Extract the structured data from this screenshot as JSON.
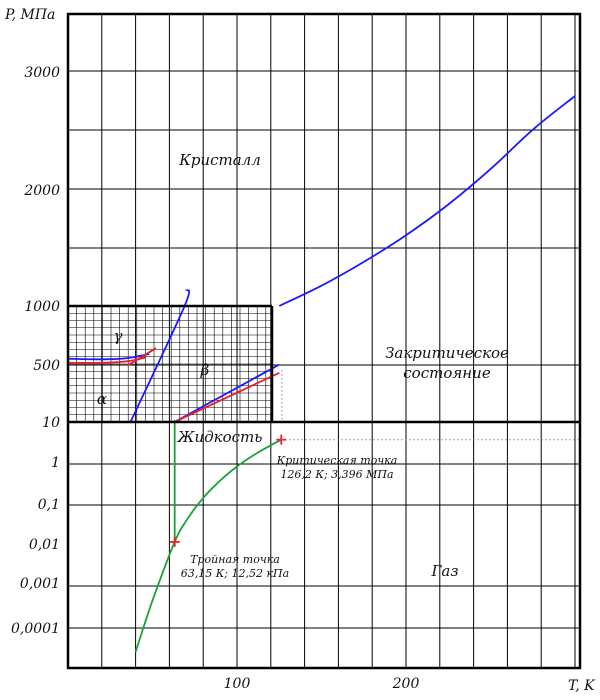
{
  "chart_data": {
    "type": "line",
    "title": "",
    "xlabel": "T, K",
    "ylabel": "P, МПа",
    "x_ticks": [
      "100",
      "200"
    ],
    "y_ticks_lower": [
      "0,0001",
      "0,001",
      "0,01",
      "0,1",
      "1",
      "10"
    ],
    "y_ticks_middle": [
      "10",
      "500",
      "1000"
    ],
    "y_ticks_upper": [
      "1000",
      "2000",
      "3000"
    ],
    "grid": true,
    "colors": {
      "melting": "#1a1aff",
      "boundary": "#e8202a",
      "vapor": "#1aa336",
      "marker": "#e8202a",
      "axes": "#000000"
    },
    "region_labels": {
      "crystal": "Кристалл",
      "supercritical_line1": "Закритическое",
      "supercritical_line2": "состояние",
      "liquid": "Жидкость",
      "gas": "Газ",
      "alpha": "α",
      "beta": "β",
      "gamma": "γ"
    },
    "critical_point": {
      "label_line1": "Критическая точка",
      "label_line2": "126,2 К; 3,396 МПа",
      "T": 126.2,
      "P": 3.396
    },
    "triple_point": {
      "label_line1": "Тройная точка",
      "label_line2": "63,15 К; 12,52 кПа",
      "T": 63.15,
      "P": 0.01252
    },
    "series": [
      {
        "key": "vapor",
        "scale": "log",
        "points": [
          [
            40,
            3e-05
          ],
          [
            50,
            0.0005
          ],
          [
            63.15,
            0.01252
          ],
          [
            70,
            0.04
          ],
          [
            80,
            0.14
          ],
          [
            90,
            0.36
          ],
          [
            100,
            0.78
          ],
          [
            110,
            1.47
          ],
          [
            120,
            2.5
          ],
          [
            126.2,
            3.396
          ]
        ]
      },
      {
        "key": "fusion_low",
        "scale": "log",
        "points": [
          [
            63.15,
            0.01252
          ],
          [
            63.15,
            10
          ]
        ]
      },
      {
        "key": "melting_high",
        "scale": "linear_upper",
        "points": [
          [
            125,
            1000
          ],
          [
            150,
            1175
          ],
          [
            175,
            1380
          ],
          [
            200,
            1610
          ],
          [
            225,
            1875
          ],
          [
            250,
            2180
          ],
          [
            275,
            2520
          ],
          [
            300,
            2810
          ]
        ]
      },
      {
        "key": "melting_mid",
        "scale": "linear_mid",
        "points": [
          [
            63,
            10
          ],
          [
            125,
            500
          ]
        ]
      },
      {
        "key": "melting_steep",
        "scale": "linear_mid",
        "points": [
          [
            37,
            10
          ],
          [
            69,
            1000
          ],
          [
            70,
            1140
          ]
        ]
      },
      {
        "key": "alpha_gamma_blue",
        "scale": "linear_mid",
        "points": [
          [
            -10,
            550
          ],
          [
            20,
            545
          ],
          [
            35,
            555
          ],
          [
            48,
            590
          ]
        ]
      },
      {
        "key": "alpha_gamma_red",
        "scale": "linear_mid",
        "points": [
          [
            -10,
            515
          ],
          [
            20,
            515
          ],
          [
            35,
            528
          ],
          [
            46,
            560
          ]
        ]
      },
      {
        "key": "red_steep",
        "scale": "linear_mid",
        "points": [
          [
            35,
            490
          ],
          [
            52,
            640
          ]
        ]
      },
      {
        "key": "beta_red",
        "scale": "linear_mid",
        "points": [
          [
            63,
            10
          ],
          [
            125,
            430
          ]
        ]
      }
    ]
  }
}
